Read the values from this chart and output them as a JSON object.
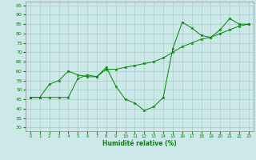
{
  "title": "",
  "xlabel": "Humidité relative (%)",
  "ylabel": "",
  "xlim": [
    -0.5,
    23.5
  ],
  "ylim": [
    28,
    97
  ],
  "yticks": [
    30,
    35,
    40,
    45,
    50,
    55,
    60,
    65,
    70,
    75,
    80,
    85,
    90,
    95
  ],
  "xticks": [
    0,
    1,
    2,
    3,
    4,
    5,
    6,
    7,
    8,
    9,
    10,
    11,
    12,
    13,
    14,
    15,
    16,
    17,
    18,
    19,
    20,
    21,
    22,
    23
  ],
  "background_color": "#cce8e8",
  "grid_color": "#aacccc",
  "line_color": "#008800",
  "line1": {
    "x": [
      0,
      1,
      2,
      3,
      4,
      5,
      6,
      7,
      8,
      9,
      10,
      11,
      12,
      13,
      14,
      15,
      16,
      17,
      18,
      19,
      20,
      21,
      22,
      23
    ],
    "y": [
      46,
      46,
      53,
      55,
      60,
      58,
      57,
      57,
      62,
      52,
      45,
      43,
      39,
      41,
      46,
      72,
      86,
      83,
      79,
      78,
      82,
      88,
      85,
      85
    ]
  },
  "line2": {
    "x": [
      0,
      1,
      2,
      3,
      4,
      5,
      6,
      7,
      8,
      9,
      10,
      11,
      12,
      13,
      14,
      15,
      16,
      17,
      18,
      19,
      20,
      21,
      22,
      23
    ],
    "y": [
      46,
      46,
      46,
      46,
      46,
      56,
      58,
      57,
      61,
      61,
      62,
      63,
      64,
      65,
      67,
      70,
      73,
      75,
      77,
      78,
      80,
      82,
      84,
      85
    ]
  },
  "figsize": [
    3.2,
    2.0
  ],
  "dpi": 100
}
